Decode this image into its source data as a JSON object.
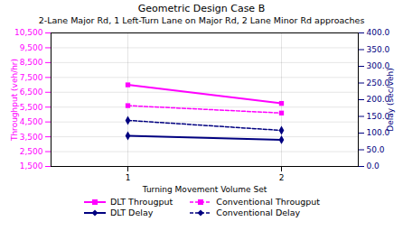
{
  "chart_data": {
    "type": "line",
    "title": "Geometric Design Case B",
    "subtitle": "2-Lane Major Rd, 1 Left-Turn Lane on Major Rd, 2 Lane Minor Rd approaches",
    "xlabel": "Turning Movement Volume Set",
    "ylabel": "Throughput (veh/hr)",
    "y2label": "Delay (sec/veh)",
    "x": [
      1,
      2
    ],
    "xlim": [
      0.5,
      2.5
    ],
    "xticks": [
      1,
      2
    ],
    "ylim": [
      1500,
      10500
    ],
    "yticks": [
      {
        "value": 1500,
        "label": "1,500"
      },
      {
        "value": 2500,
        "label": "2,500"
      },
      {
        "value": 3500,
        "label": "3,500"
      },
      {
        "value": 4500,
        "label": "4,500"
      },
      {
        "value": 5500,
        "label": "5,500"
      },
      {
        "value": 6500,
        "label": "6,500"
      },
      {
        "value": 7500,
        "label": "7,500"
      },
      {
        "value": 8500,
        "label": "8,500"
      },
      {
        "value": 9500,
        "label": "9,500"
      },
      {
        "value": 10500,
        "label": "10,500"
      }
    ],
    "y2lim": [
      0.0,
      400.0
    ],
    "y2ticks": [
      {
        "value": 0,
        "label": "0.0"
      },
      {
        "value": 50,
        "label": "50.0"
      },
      {
        "value": 100,
        "label": "100.0"
      },
      {
        "value": 150,
        "label": "150.0"
      },
      {
        "value": 200,
        "label": "200.0"
      },
      {
        "value": 250,
        "label": "250.0"
      },
      {
        "value": 300,
        "label": "300.0"
      },
      {
        "value": 350,
        "label": "350.0"
      },
      {
        "value": 400,
        "label": "400.0"
      }
    ],
    "grid": true,
    "legend": "bottom",
    "series": [
      {
        "name": "DLT Througput",
        "color": "#FF00FF",
        "marker": "square",
        "line_style": "solid",
        "values": [
          7000,
          5750
        ]
      },
      {
        "name": "Conventional Througput",
        "color": "#FF00FF",
        "marker": "square",
        "line_style": "dashed",
        "values": [
          5600,
          5100
        ]
      },
      {
        "name": "DLT Delay",
        "color": "#000080",
        "marker": "diamond",
        "line_style": "solid",
        "axis": "y2",
        "values": [
          92,
          80
        ]
      },
      {
        "name": "Conventional Delay",
        "color": "#000080",
        "marker": "diamond",
        "line_style": "dashed",
        "axis": "y2",
        "values": [
          138,
          108
        ]
      }
    ]
  }
}
